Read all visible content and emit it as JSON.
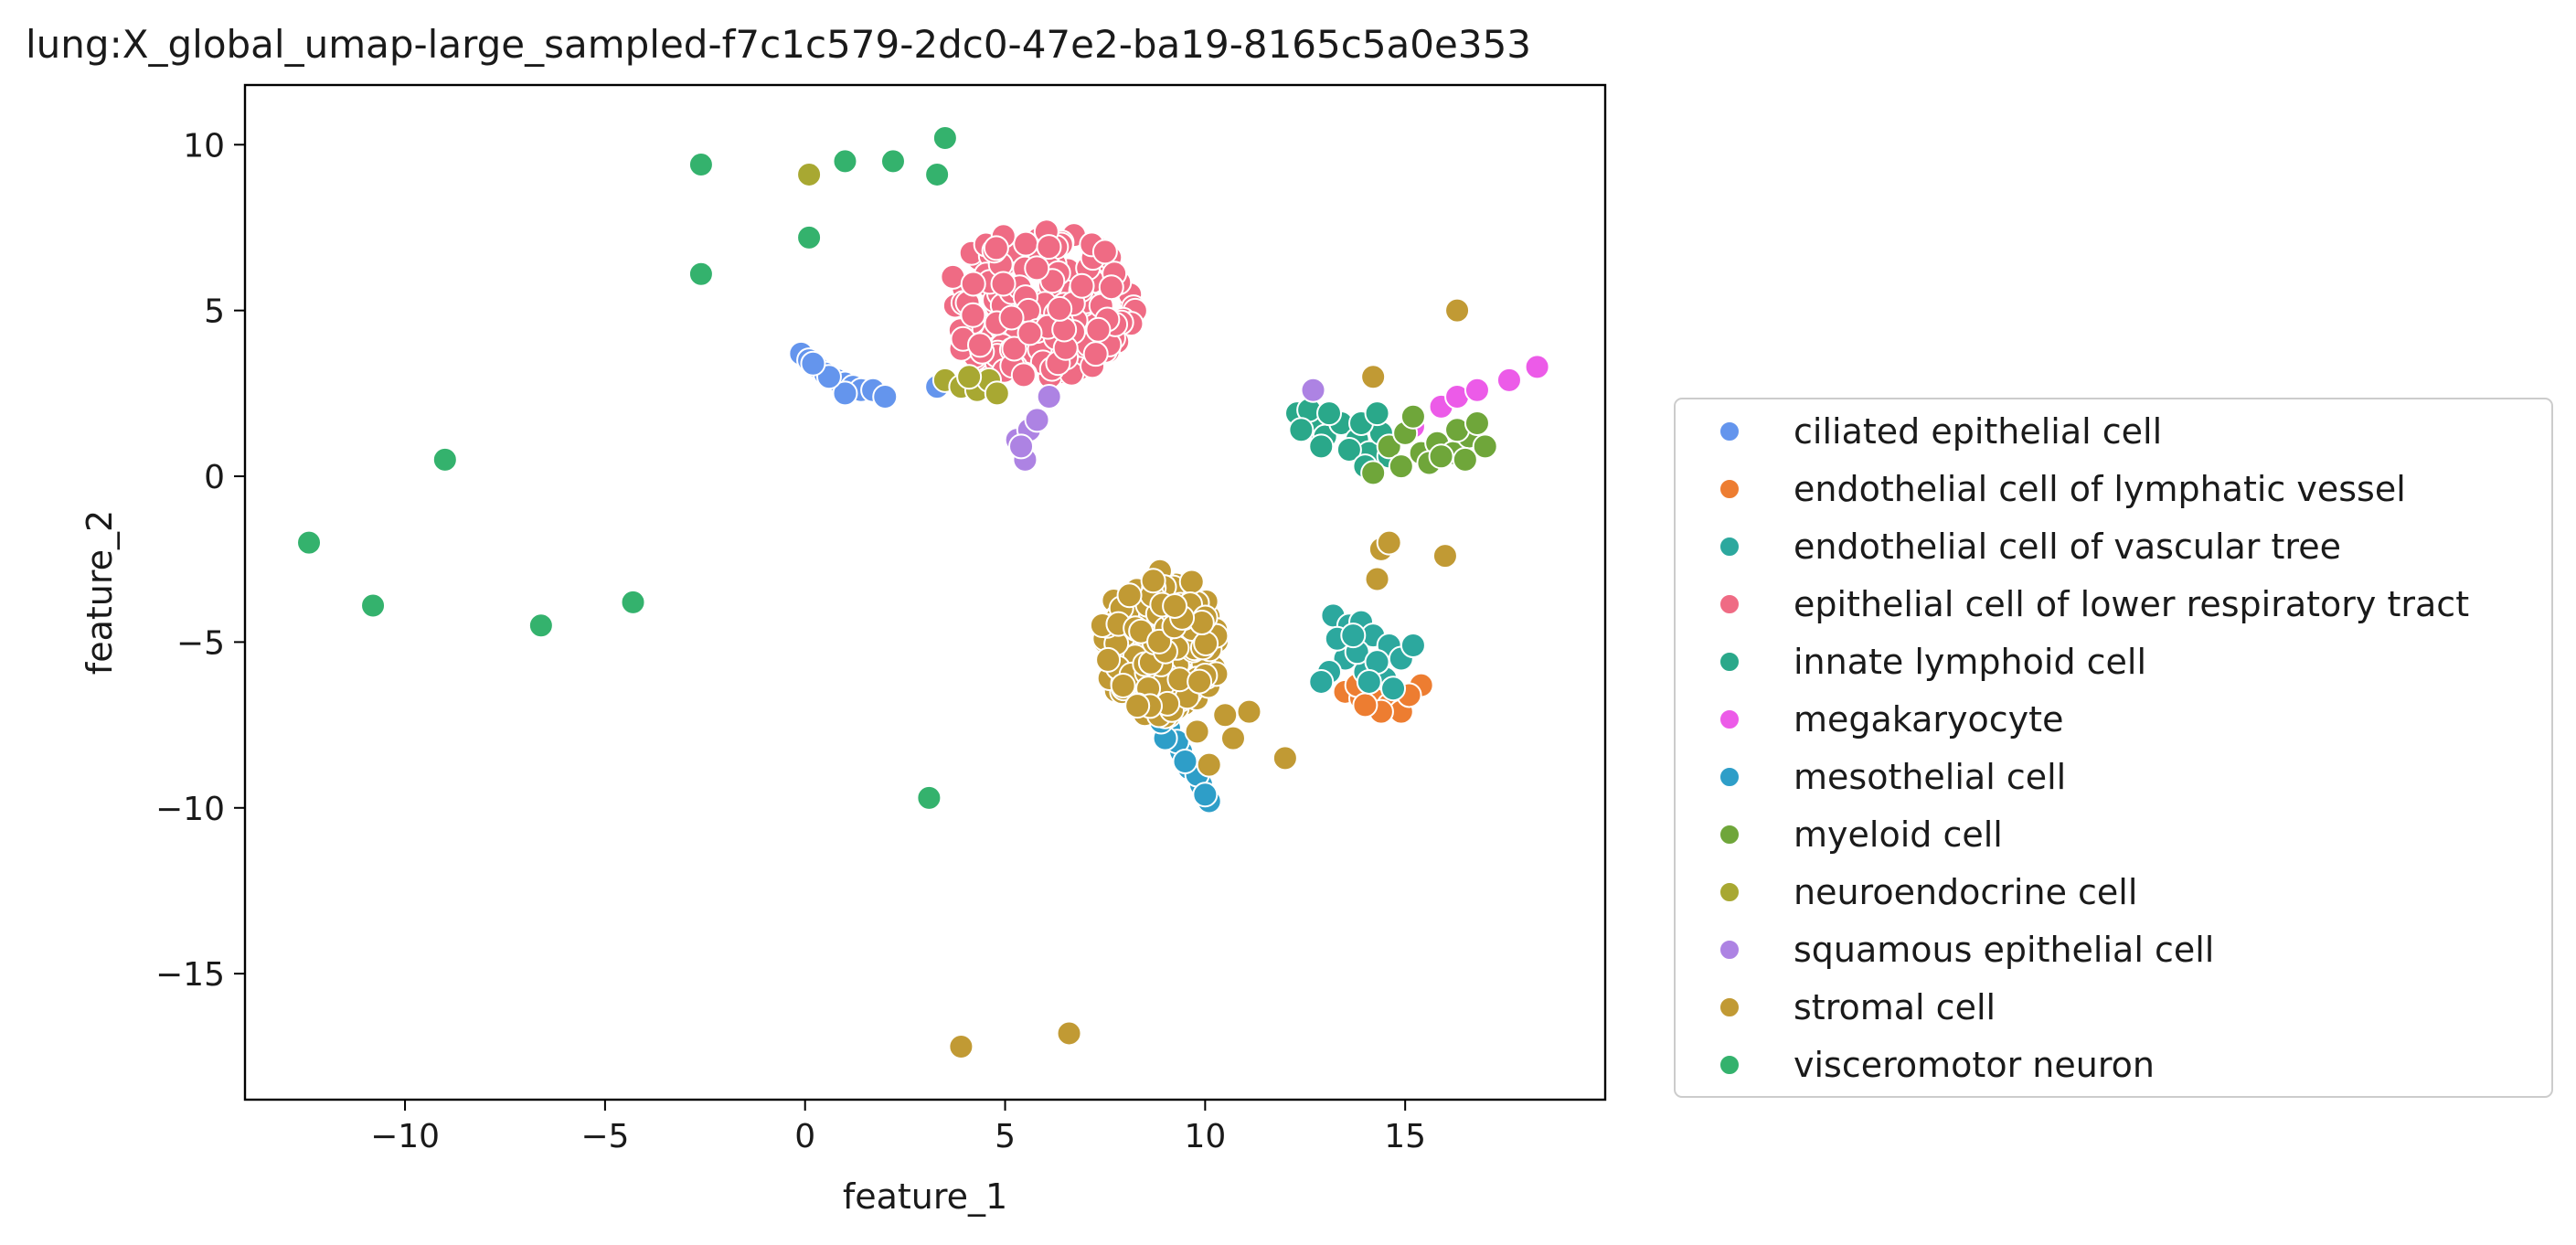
{
  "chart_data": {
    "type": "scatter",
    "title": "lung:X_global_umap-large_sampled-f7c1c579-2dc0-47e2-ba19-8165c5a0e353",
    "xlabel": "feature_1",
    "ylabel": "feature_2",
    "xlim": [
      -14,
      20
    ],
    "ylim": [
      -18.8,
      11.8
    ],
    "xticks": [
      -10,
      -5,
      0,
      5,
      10,
      15
    ],
    "yticks": [
      -15,
      -10,
      -5,
      0,
      5,
      10
    ],
    "xtick_labels": [
      "−10",
      "−5",
      "0",
      "5",
      "10",
      "15"
    ],
    "ytick_labels": [
      "−15",
      "−10",
      "−5",
      "0",
      "5",
      "10"
    ],
    "grid": false,
    "legend_position": "outside-right",
    "series": [
      {
        "name": "ciliated epithelial cell",
        "color": "#6495ed",
        "points": [
          [
            -0.1,
            3.7
          ],
          [
            0.1,
            3.5
          ],
          [
            0.3,
            3.3
          ],
          [
            0.5,
            3.1
          ],
          [
            0.8,
            2.9
          ],
          [
            1.0,
            2.8
          ],
          [
            1.2,
            2.7
          ],
          [
            1.4,
            2.6
          ],
          [
            1.7,
            2.6
          ],
          [
            2.0,
            2.4
          ],
          [
            1.0,
            2.5
          ],
          [
            0.6,
            3.0
          ],
          [
            3.3,
            2.7
          ],
          [
            0.2,
            3.4
          ]
        ]
      },
      {
        "name": "endothelial cell of lymphatic vessel",
        "color": "#ed7d31",
        "points": [
          [
            13.5,
            -6.5
          ],
          [
            13.9,
            -6.7
          ],
          [
            14.2,
            -6.6
          ],
          [
            14.6,
            -6.9
          ],
          [
            14.9,
            -7.1
          ],
          [
            14.4,
            -7.1
          ],
          [
            13.8,
            -6.3
          ],
          [
            15.4,
            -6.3
          ],
          [
            14.0,
            -6.9
          ],
          [
            15.1,
            -6.6
          ]
        ]
      },
      {
        "name": "endothelial cell of vascular tree",
        "color": "#2ca89e",
        "points": [
          [
            13.2,
            -4.2
          ],
          [
            13.6,
            -4.5
          ],
          [
            13.9,
            -4.4
          ],
          [
            14.2,
            -4.8
          ],
          [
            14.6,
            -5.1
          ],
          [
            13.5,
            -5.5
          ],
          [
            14.0,
            -5.9
          ],
          [
            14.5,
            -6.1
          ],
          [
            14.9,
            -5.5
          ],
          [
            13.1,
            -5.9
          ],
          [
            13.8,
            -5.3
          ],
          [
            14.3,
            -5.6
          ],
          [
            15.2,
            -5.1
          ],
          [
            13.3,
            -4.9
          ],
          [
            14.7,
            -6.4
          ],
          [
            12.9,
            -6.2
          ],
          [
            13.7,
            -4.8
          ],
          [
            14.1,
            -6.2
          ]
        ]
      },
      {
        "name": "epithelial cell of lower respiratory tract",
        "color": "#ef6b84",
        "cluster": {
          "cx": 5.8,
          "cy": 5.2,
          "rx": 2.6,
          "ry": 2.4,
          "n": 190
        }
      },
      {
        "name": "innate lymphoid cell",
        "color": "#2aa88a",
        "points": [
          [
            12.3,
            1.9
          ],
          [
            12.7,
            1.5
          ],
          [
            13.0,
            1.2
          ],
          [
            13.4,
            1.6
          ],
          [
            13.8,
            1.1
          ],
          [
            14.1,
            0.7
          ],
          [
            14.4,
            1.3
          ],
          [
            12.6,
            2.0
          ],
          [
            13.1,
            1.9
          ],
          [
            13.6,
            0.8
          ],
          [
            14.0,
            0.3
          ],
          [
            14.6,
            0.6
          ],
          [
            12.4,
            1.4
          ],
          [
            13.9,
            1.6
          ],
          [
            12.9,
            0.9
          ],
          [
            14.3,
            1.9
          ]
        ]
      },
      {
        "name": "megakaryocyte",
        "color": "#ec5be8",
        "points": [
          [
            15.2,
            1.5
          ],
          [
            15.9,
            2.1
          ],
          [
            16.3,
            2.4
          ],
          [
            16.8,
            2.6
          ],
          [
            17.6,
            2.9
          ],
          [
            18.3,
            3.3
          ]
        ]
      },
      {
        "name": "mesothelial cell",
        "color": "#2e9ec8",
        "points": [
          [
            8.8,
            -7.1
          ],
          [
            9.1,
            -7.6
          ],
          [
            9.4,
            -8.3
          ],
          [
            9.6,
            -8.8
          ],
          [
            9.9,
            -9.3
          ],
          [
            10.1,
            -9.8
          ],
          [
            9.3,
            -8.0
          ],
          [
            9.8,
            -9.0
          ],
          [
            9.0,
            -7.9
          ],
          [
            10.0,
            -9.6
          ],
          [
            8.9,
            -7.4
          ],
          [
            9.5,
            -8.6
          ]
        ]
      },
      {
        "name": "myeloid cell",
        "color": "#6fa63a",
        "points": [
          [
            14.6,
            0.9
          ],
          [
            15.0,
            1.3
          ],
          [
            15.4,
            0.7
          ],
          [
            15.8,
            1.0
          ],
          [
            16.2,
            0.7
          ],
          [
            16.6,
            1.2
          ],
          [
            17.0,
            0.9
          ],
          [
            14.9,
            0.3
          ],
          [
            15.6,
            0.4
          ],
          [
            16.3,
            1.4
          ],
          [
            15.2,
            1.8
          ],
          [
            16.8,
            1.6
          ],
          [
            14.2,
            0.1
          ],
          [
            15.9,
            0.6
          ],
          [
            16.5,
            0.5
          ]
        ]
      },
      {
        "name": "neuroendocrine cell",
        "color": "#a8a832",
        "points": [
          [
            0.1,
            9.1
          ],
          [
            3.5,
            2.9
          ],
          [
            3.9,
            2.7
          ],
          [
            4.3,
            2.6
          ],
          [
            4.6,
            2.9
          ],
          [
            4.1,
            3.0
          ],
          [
            4.8,
            2.5
          ]
        ]
      },
      {
        "name": "squamous epithelial cell",
        "color": "#ad83e3",
        "points": [
          [
            5.3,
            1.1
          ],
          [
            5.5,
            0.5
          ],
          [
            5.6,
            1.4
          ],
          [
            5.8,
            1.7
          ],
          [
            6.1,
            2.4
          ],
          [
            12.7,
            2.6
          ],
          [
            5.4,
            0.9
          ]
        ]
      },
      {
        "name": "stromal cell",
        "color": "#c19a34",
        "cluster": {
          "cx": 8.9,
          "cy": -5.0,
          "rx": 1.6,
          "ry": 2.4,
          "n": 170
        },
        "points": [
          [
            16.3,
            5.0
          ],
          [
            14.2,
            3.0
          ],
          [
            14.4,
            -2.2
          ],
          [
            14.6,
            -2.0
          ],
          [
            14.3,
            -3.1
          ],
          [
            16.0,
            -2.4
          ],
          [
            11.1,
            -7.1
          ],
          [
            10.7,
            -7.9
          ],
          [
            10.1,
            -8.7
          ],
          [
            12.0,
            -8.5
          ],
          [
            3.9,
            -17.2
          ],
          [
            6.6,
            -16.8
          ],
          [
            10.5,
            -7.2
          ],
          [
            9.8,
            -7.7
          ]
        ]
      },
      {
        "name": "visceromotor neuron",
        "color": "#34b26d",
        "points": [
          [
            -2.6,
            9.4
          ],
          [
            1.0,
            9.5
          ],
          [
            2.2,
            9.5
          ],
          [
            3.3,
            9.1
          ],
          [
            3.5,
            10.2
          ],
          [
            0.1,
            7.2
          ],
          [
            -2.6,
            6.1
          ],
          [
            -9.0,
            0.5
          ],
          [
            -12.4,
            -2.0
          ],
          [
            -10.8,
            -3.9
          ],
          [
            -6.6,
            -4.5
          ],
          [
            -4.3,
            -3.8
          ],
          [
            3.1,
            -9.7
          ]
        ]
      }
    ]
  }
}
